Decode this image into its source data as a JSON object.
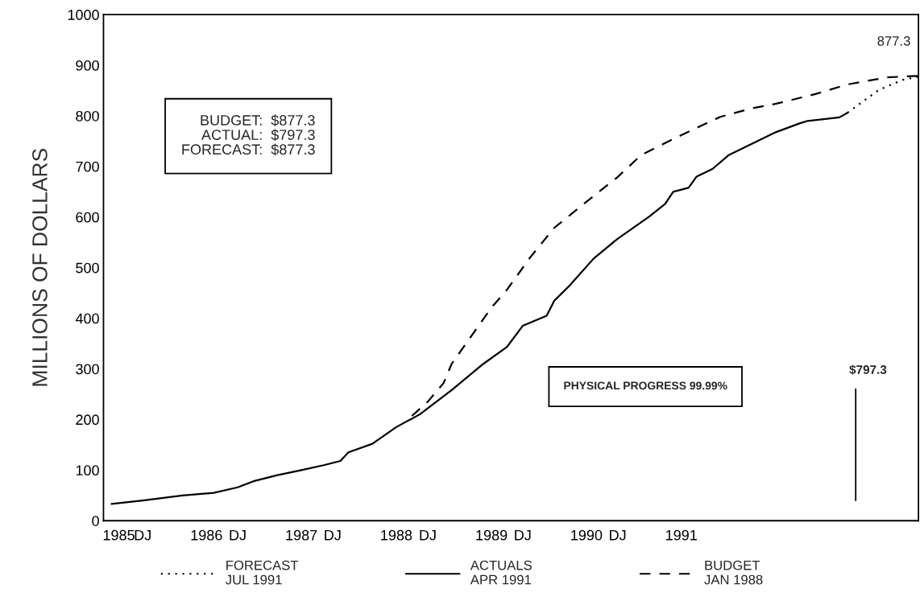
{
  "chart_data": {
    "type": "line",
    "ylabel": "MILLIONS OF DOLLARS",
    "series": [
      {
        "name": "FORECAST\nJUL 1991",
        "color": "#000000",
        "line_style": "dotted",
        "x": [
          "1992-11",
          "1993-03",
          "1993-06",
          "1993-08"
        ],
        "values": [
          806,
          851,
          871,
          877
        ]
      },
      {
        "name": "ACTUALS\nAPR 1991",
        "color": "#000000",
        "line_style": "solid",
        "x": [
          "1985-02",
          "1985-06",
          "1985-11",
          "1986-03",
          "1986-06",
          "1986-08",
          "1986-11",
          "1987-02",
          "1987-05",
          "1987-07",
          "1987-08",
          "1987-11",
          "1988-02",
          "1988-05",
          "1988-09",
          "1989-01",
          "1989-04",
          "1989-06",
          "1989-09",
          "1989-10",
          "1989-12",
          "1990-03",
          "1990-06",
          "1990-10",
          "1990-12",
          "1991-01",
          "1991-03",
          "1991-04",
          "1991-06",
          "1991-08",
          "1991-11",
          "1992-02",
          "1992-05",
          "1992-06",
          "1992-10",
          "1992-11"
        ],
        "values": [
          33,
          40,
          50,
          55,
          66,
          78,
          90,
          100,
          110,
          118,
          135,
          152,
          185,
          210,
          258,
          310,
          343,
          385,
          405,
          435,
          466,
          518,
          557,
          601,
          626,
          650,
          658,
          680,
          695,
          722,
          745,
          768,
          785,
          790,
          797,
          806
        ]
      },
      {
        "name": "BUDGET\nJAN 1988",
        "color": "#000000",
        "line_style": "dashed",
        "x": [
          "1988-04",
          "1988-06",
          "1988-08",
          "1988-09",
          "1989-02",
          "1989-04",
          "1989-07",
          "1989-10",
          "1990-02",
          "1990-06",
          "1990-09",
          "1991-02",
          "1991-07",
          "1991-11",
          "1992-02",
          "1992-07",
          "1992-11",
          "1993-04",
          "1993-08"
        ],
        "values": [
          207,
          235,
          272,
          310,
          421,
          456,
          521,
          579,
          630,
          679,
          723,
          762,
          798,
          815,
          824,
          843,
          862,
          876,
          879
        ]
      }
    ],
    "annotations": [
      "BUDGET:  $877.3\nACTUAL:  $797.3\nFORECAST:  $877.3",
      "PHYSICAL PROGRESS 99.99%",
      "$797.3",
      {
        "text": "877.3",
        "x": "1993-08",
        "y": 877
      }
    ],
    "ylim": [
      0,
      1000
    ],
    "yticks": [
      0,
      100,
      200,
      300,
      400,
      500,
      600,
      700,
      800,
      900,
      1000
    ],
    "xlim": [
      "1985-01",
      "1993-08"
    ],
    "xticks": [
      {
        "value": "1985-03",
        "label": "1985"
      },
      {
        "value": "1985-06",
        "label": "DJ"
      },
      {
        "value": "1986-02",
        "label": "1986"
      },
      {
        "value": "1986-06",
        "label": "DJ"
      },
      {
        "value": "1987-02",
        "label": "1987"
      },
      {
        "value": "1987-06",
        "label": "DJ"
      },
      {
        "value": "1988-02",
        "label": "1988"
      },
      {
        "value": "1988-06",
        "label": "DJ"
      },
      {
        "value": "1989-02",
        "label": "1989"
      },
      {
        "value": "1989-06",
        "label": "DJ"
      },
      {
        "value": "1990-02",
        "label": "1990"
      },
      {
        "value": "1990-06",
        "label": "DJ"
      },
      {
        "value": "1991-02",
        "label": "1991"
      }
    ],
    "grid": false,
    "legend": "bottom"
  }
}
